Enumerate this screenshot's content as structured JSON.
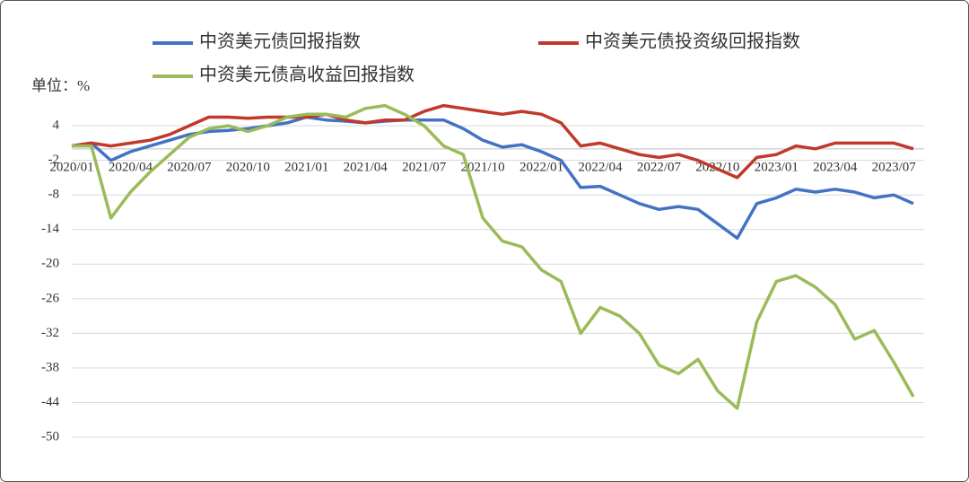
{
  "chart_data": {
    "type": "line",
    "unit_label": "单位：%",
    "categories": [
      "2020/01",
      null,
      null,
      "2020/04",
      null,
      null,
      "2020/07",
      null,
      null,
      "2020/10",
      null,
      null,
      "2021/01",
      null,
      null,
      "2021/04",
      null,
      null,
      "2021/07",
      null,
      null,
      "2021/10",
      null,
      null,
      "2022/01",
      null,
      null,
      "2022/04",
      null,
      null,
      "2022/07",
      null,
      null,
      "2022/10",
      null,
      null,
      "2023/01",
      null,
      null,
      "2023/04",
      null,
      null,
      "2023/07",
      null
    ],
    "series": [
      {
        "name": "中资美元债回报指数",
        "color": "#4472c4",
        "values": [
          0.5,
          1,
          -2,
          -0.5,
          0.5,
          1.5,
          2.5,
          3,
          3.2,
          3.5,
          4,
          4.5,
          5.5,
          5,
          4.8,
          4.5,
          4.8,
          5,
          5,
          5,
          3.5,
          1.5,
          0.3,
          0.7,
          -0.5,
          -2,
          -6.7,
          -6.5,
          -8,
          -9.5,
          -10.5,
          -10,
          -10.5,
          -13,
          -15.5,
          -9.5,
          -8.5,
          -7,
          -7.5,
          -7,
          -7.5,
          -8.5,
          -8,
          -9.5
        ]
      },
      {
        "name": "中资美元债投资级回报指数",
        "color": "#c0392b",
        "values": [
          0.5,
          1,
          0.5,
          1,
          1.5,
          2.5,
          4,
          5.5,
          5.5,
          5.3,
          5.5,
          5.5,
          5.5,
          6,
          5,
          4.5,
          5,
          5,
          6.5,
          7.5,
          7,
          6.5,
          6,
          6.5,
          6,
          4.5,
          0.5,
          1,
          0,
          -1,
          -1.5,
          -1,
          -2,
          -3.5,
          -5,
          -1.5,
          -1,
          0.5,
          0,
          1,
          1,
          1,
          1,
          0
        ]
      },
      {
        "name": "中资美元债高收益回报指数",
        "color": "#9bbb59",
        "values": [
          0.5,
          0.5,
          -12,
          -7.5,
          -4,
          -1,
          2,
          3.5,
          4,
          3,
          4,
          5.5,
          6,
          6,
          5.5,
          7,
          7.5,
          6,
          4,
          0.5,
          -1,
          -12,
          -16,
          -17,
          -21,
          -23,
          -32,
          -27.5,
          -29,
          -32,
          -37.5,
          -39,
          -36.5,
          -42,
          -45,
          -30,
          -23,
          -22,
          -24,
          -27,
          -33,
          -31.5,
          -37,
          -43
        ]
      }
    ],
    "ylim": [
      -50,
      9
    ],
    "yticks": [
      -50,
      -44,
      -38,
      -32,
      -26,
      -20,
      -14,
      -8,
      -2,
      4
    ],
    "grid": true
  }
}
